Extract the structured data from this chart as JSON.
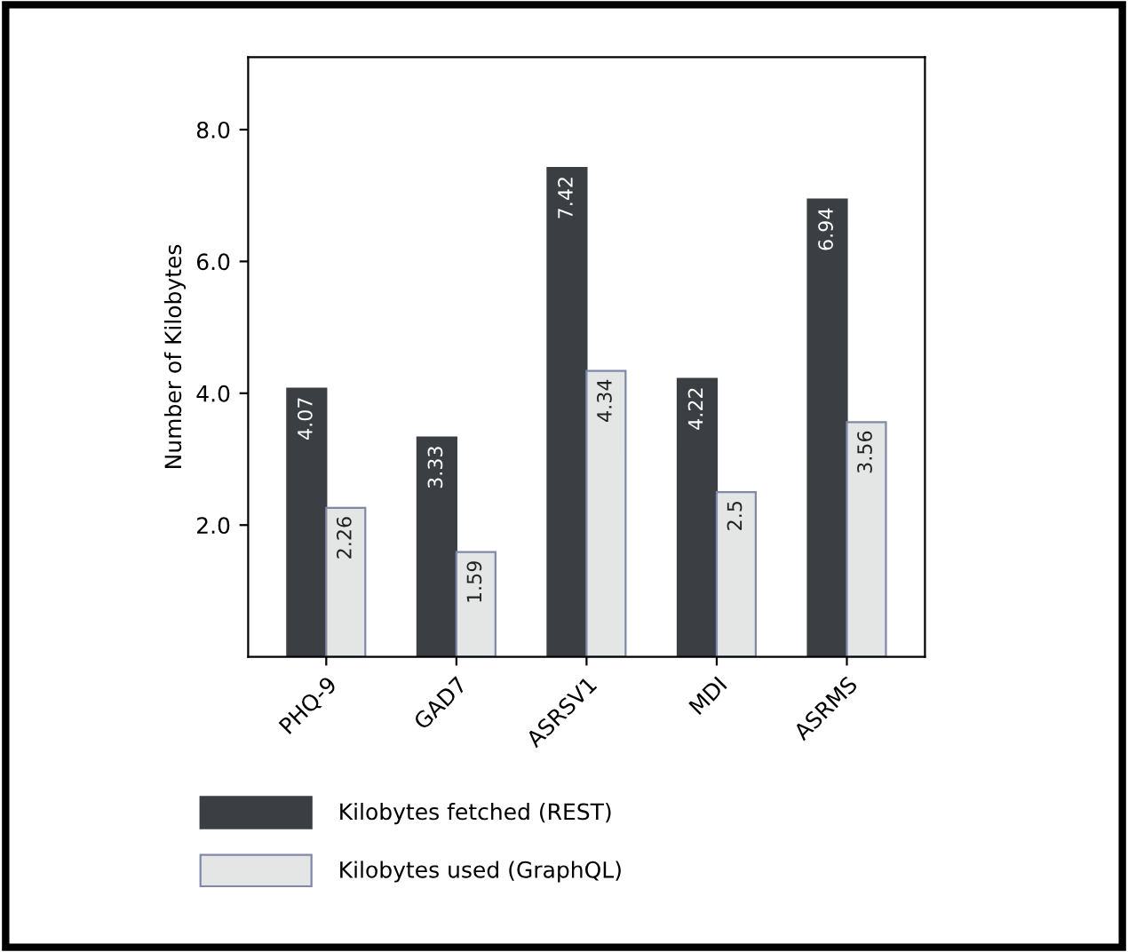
{
  "chart_data": {
    "type": "bar",
    "ylabel": "Number of Kilobytes",
    "categories": [
      "PHQ-9",
      "GAD7",
      "ASRSV1",
      "MDI",
      "ASRMS"
    ],
    "series": [
      {
        "name": "Kilobytes fetched (REST)",
        "color": "#3b3e43",
        "values": [
          4.07,
          3.33,
          7.42,
          4.22,
          6.94
        ]
      },
      {
        "name": "Kilobytes used (GraphQL)",
        "color": "#e4e6e6",
        "values": [
          2.26,
          1.59,
          4.34,
          2.5,
          3.56
        ]
      }
    ],
    "ylim": [
      0,
      9.1
    ],
    "yticks": [
      {
        "value": 2,
        "label": "2.0"
      },
      {
        "value": 4,
        "label": "4.0"
      },
      {
        "value": 6,
        "label": "6.0"
      },
      {
        "value": 8,
        "label": "8.0"
      }
    ],
    "data_labels": true,
    "legend": "bottom",
    "grid": false
  }
}
